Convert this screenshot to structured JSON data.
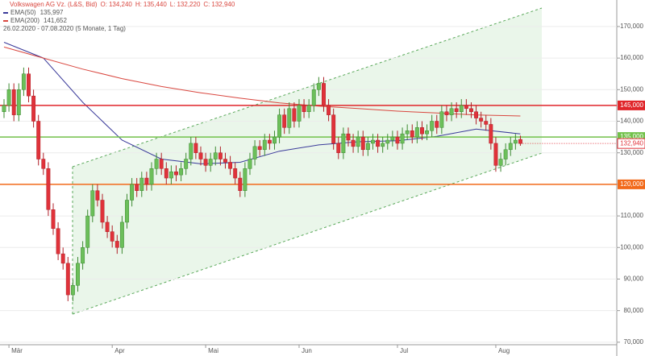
{
  "chart_data": {
    "type": "candlestick",
    "title": "Volkswagen AG Vz. (L&S, Bid)",
    "ohlc": [
      {
        "name": "O:",
        "value": 134.24,
        "label": "134,240"
      },
      {
        "name": "H:",
        "value": 135.44,
        "label": "135,440"
      },
      {
        "name": "L:",
        "value": 132.22,
        "label": "132,220"
      },
      {
        "name": "C:",
        "value": 132.94,
        "label": "132,940"
      }
    ],
    "subtitle": "26.02.2020 - 07.08.2020  (5 Monate, 1 Tag)",
    "up_color": "#6cbf5a",
    "down_color": "#e0323a",
    "open": [
      143,
      145,
      150,
      142,
      150,
      155,
      148,
      140,
      128,
      125,
      112,
      106,
      98,
      95,
      85,
      88,
      95,
      100,
      110,
      118,
      115,
      108,
      105,
      102,
      100,
      108,
      115,
      120,
      118,
      122,
      120,
      125,
      128,
      125,
      122,
      124,
      123,
      125,
      128,
      133,
      130,
      128,
      126,
      128,
      130,
      128,
      127,
      125,
      122,
      118,
      125,
      128,
      132,
      131,
      134,
      133,
      135,
      142,
      138,
      144,
      140,
      145,
      143,
      145,
      150,
      152,
      145,
      142,
      133,
      130,
      136,
      134,
      132,
      135,
      131,
      133,
      134,
      132,
      133,
      134,
      135,
      133,
      136,
      137,
      135,
      138,
      136,
      137,
      140,
      138,
      143,
      142,
      144,
      143,
      145,
      144,
      143,
      141,
      140,
      139,
      133,
      126,
      128,
      131,
      133,
      134.24
    ],
    "high": [
      147,
      152,
      152,
      152,
      157,
      157,
      150,
      142,
      130,
      127,
      114,
      108,
      100,
      97,
      90,
      97,
      102,
      112,
      120,
      120,
      117,
      110,
      107,
      104,
      110,
      117,
      122,
      122,
      124,
      124,
      127,
      130,
      130,
      127,
      126,
      126,
      127,
      130,
      135,
      135,
      132,
      130,
      130,
      132,
      132,
      130,
      129,
      127,
      124,
      127,
      130,
      134,
      134,
      136,
      136,
      137,
      144,
      144,
      146,
      146,
      147,
      147,
      147,
      152,
      154,
      154,
      147,
      144,
      135,
      138,
      138,
      136,
      137,
      137,
      135,
      136,
      136,
      135,
      136,
      137,
      137,
      138,
      139,
      139,
      140,
      140,
      139,
      142,
      142,
      145,
      145,
      146,
      146,
      147,
      147,
      146,
      145,
      143,
      142,
      141,
      135,
      130,
      133,
      135,
      136,
      135.44
    ],
    "low": [
      141,
      143,
      140,
      140,
      148,
      146,
      138,
      126,
      123,
      110,
      104,
      96,
      93,
      83,
      83,
      86,
      93,
      98,
      108,
      113,
      106,
      103,
      100,
      98,
      98,
      106,
      113,
      116,
      116,
      118,
      118,
      123,
      123,
      120,
      120,
      121,
      121,
      123,
      126,
      128,
      126,
      124,
      124,
      126,
      126,
      125,
      123,
      120,
      116,
      116,
      123,
      126,
      129,
      129,
      131,
      131,
      133,
      136,
      136,
      138,
      138,
      141,
      141,
      143,
      148,
      143,
      140,
      131,
      128,
      128,
      132,
      130,
      130,
      129,
      129,
      131,
      130,
      130,
      131,
      132,
      131,
      131,
      134,
      133,
      133,
      134,
      134,
      135,
      136,
      136,
      140,
      140,
      141,
      141,
      142,
      141,
      139,
      138,
      137,
      131,
      124,
      124,
      126,
      129,
      131,
      132.22
    ],
    "close": [
      145,
      150,
      142,
      150,
      155,
      148,
      140,
      128,
      125,
      112,
      106,
      98,
      95,
      85,
      88,
      95,
      100,
      110,
      118,
      115,
      108,
      105,
      102,
      100,
      108,
      115,
      120,
      118,
      122,
      120,
      125,
      128,
      125,
      122,
      124,
      123,
      125,
      128,
      133,
      130,
      128,
      126,
      128,
      130,
      128,
      127,
      125,
      122,
      118,
      125,
      128,
      132,
      131,
      134,
      133,
      135,
      142,
      138,
      144,
      140,
      145,
      143,
      145,
      150,
      152,
      145,
      142,
      133,
      130,
      136,
      134,
      132,
      135,
      131,
      133,
      134,
      132,
      133,
      134,
      135,
      133,
      136,
      137,
      135,
      138,
      136,
      137,
      140,
      138,
      143,
      142,
      144,
      143,
      145,
      144,
      143,
      141,
      140,
      139,
      133,
      126,
      128,
      131,
      133,
      134,
      132.94
    ],
    "series": [
      {
        "name": "EMA(50)",
        "color": "#3a3a9a",
        "legend_value": {
          "value": 135.997,
          "label": "135,997"
        },
        "x": [
          0,
          8,
          16,
          24,
          32,
          40,
          48,
          56,
          64,
          72,
          80,
          88,
          96,
          105
        ],
        "values": [
          165,
          160,
          146,
          134,
          128,
          126.5,
          127,
          130.5,
          132.5,
          133.5,
          133.8,
          135.2,
          137.5,
          135.997
        ]
      },
      {
        "name": "EMA(200)",
        "color": "#d9473f",
        "legend_value": {
          "value": 141.652,
          "label": "141,652"
        },
        "x": [
          0,
          8,
          16,
          24,
          32,
          40,
          48,
          56,
          64,
          72,
          80,
          88,
          96,
          105
        ],
        "values": [
          163.5,
          160,
          156.5,
          153.5,
          151,
          149,
          147.3,
          145.8,
          144.8,
          144,
          143.2,
          142.6,
          142,
          141.652
        ]
      }
    ],
    "levels": [
      {
        "value": 145,
        "label": "145,000",
        "color": "#e0262b"
      },
      {
        "value": 135,
        "label": "135,000",
        "color": "#72c14a"
      },
      {
        "value": 120,
        "label": "120,000",
        "color": "#f26a1b"
      }
    ],
    "last_price": {
      "value": 132.94,
      "label": "132,940"
    },
    "xlim": [
      -0.82,
      124.6
    ],
    "xticks": [
      {
        "value": 1,
        "label": "Mär"
      },
      {
        "value": 22,
        "label": "Apr"
      },
      {
        "value": 41,
        "label": "Mai"
      },
      {
        "value": 60,
        "label": "Jun"
      },
      {
        "value": 80,
        "label": "Jul"
      },
      {
        "value": 100,
        "label": "Aug"
      }
    ],
    "ylim": [
      69.2,
      178.4
    ],
    "yticks": [
      {
        "value": 70,
        "label": "70,000"
      },
      {
        "value": 80,
        "label": "80,000"
      },
      {
        "value": 90,
        "label": "90,000"
      },
      {
        "value": 100,
        "label": "100,000"
      },
      {
        "value": 110,
        "label": "110,000"
      },
      {
        "value": 120,
        "label": "120,000"
      },
      {
        "value": 130,
        "label": "130,000"
      },
      {
        "value": 140,
        "label": "140,000"
      },
      {
        "value": 150,
        "label": "150,000"
      },
      {
        "value": 160,
        "label": "160,000"
      },
      {
        "value": 170,
        "label": "170,000"
      }
    ],
    "grid": true
  }
}
